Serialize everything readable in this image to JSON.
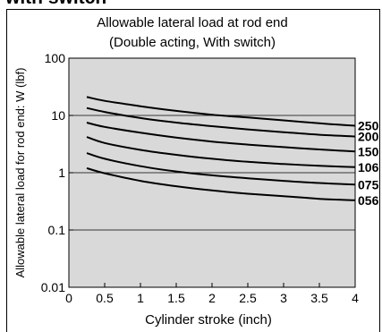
{
  "header_fragment": "with switch",
  "chart_data": {
    "type": "line",
    "title": "Allowable lateral load at rod end",
    "subtitle": "(Double acting, With switch)",
    "xlabel": "Cylinder stroke (inch)",
    "ylabel": "Allowable lateral load for rod end: W (lbf)",
    "y_scale": "log",
    "xlim": [
      0,
      4
    ],
    "ylim": [
      0.01,
      100
    ],
    "x_ticks": [
      "0",
      "0.5",
      "1",
      "1.5",
      "2",
      "2.5",
      "3",
      "3.5",
      "4"
    ],
    "y_ticks": [
      "0.01",
      "0.1",
      "1",
      "10",
      "100"
    ],
    "grid": "horizontal at decades",
    "background": "#d9d9d9",
    "line_color": "#000000",
    "x": [
      0.25,
      0.5,
      1,
      1.5,
      2,
      2.5,
      3,
      3.5,
      4
    ],
    "series": [
      {
        "name": "250",
        "values": [
          21,
          18,
          14.5,
          12,
          10.3,
          9.2,
          8.2,
          7.3,
          6.6
        ]
      },
      {
        "name": "200",
        "values": [
          13.5,
          11.5,
          9,
          7.5,
          6.5,
          5.7,
          5.1,
          4.6,
          4.3
        ]
      },
      {
        "name": "150",
        "values": [
          7.5,
          6.3,
          5.0,
          4.1,
          3.5,
          3.1,
          2.8,
          2.55,
          2.35
        ]
      },
      {
        "name": "106",
        "values": [
          4.2,
          3.3,
          2.5,
          2.05,
          1.75,
          1.55,
          1.42,
          1.32,
          1.25
        ]
      },
      {
        "name": "075",
        "values": [
          2.2,
          1.75,
          1.3,
          1.05,
          0.9,
          0.8,
          0.72,
          0.66,
          0.62
        ]
      },
      {
        "name": "056",
        "values": [
          1.2,
          0.98,
          0.72,
          0.58,
          0.49,
          0.43,
          0.39,
          0.35,
          0.33
        ]
      }
    ]
  }
}
